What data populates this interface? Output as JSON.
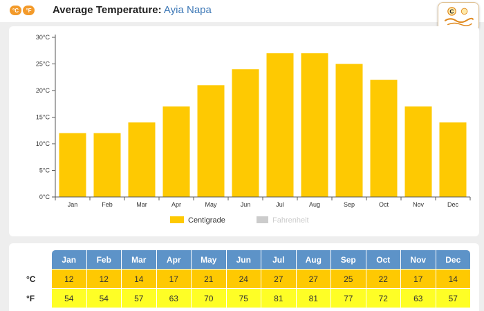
{
  "header": {
    "unit_buttons": [
      {
        "label": "°C",
        "icon": "celsius-toggle-icon"
      },
      {
        "label": "°F",
        "icon": "fahrenheit-toggle-icon"
      }
    ],
    "title_label": "Average Temperature:",
    "place": "Ayia Napa"
  },
  "colors": {
    "centigrade": "#fec902",
    "fahrenheit": "#cccccc",
    "header_blue": "#5d93c8",
    "fahrenheit_row": "#fefe26",
    "accent": "#f39a2a"
  },
  "chart_data": {
    "type": "bar",
    "categories": [
      "Jan",
      "Feb",
      "Mar",
      "Apr",
      "May",
      "Jun",
      "Jul",
      "Aug",
      "Sep",
      "Oct",
      "Nov",
      "Dec"
    ],
    "series": [
      {
        "name": "Centigrade",
        "values": [
          12,
          12,
          14,
          17,
          21,
          24,
          27,
          27,
          25,
          22,
          17,
          14
        ],
        "visible": true
      },
      {
        "name": "Fahrenheit",
        "values": [
          54,
          54,
          57,
          63,
          70,
          75,
          81,
          81,
          77,
          72,
          63,
          57
        ],
        "visible": false
      }
    ],
    "yticks": [
      "0°C",
      "5°C",
      "10°C",
      "15°C",
      "20°C",
      "25°C",
      "30°C"
    ],
    "ylim": [
      0,
      30
    ],
    "ystep": 5,
    "legend_position": "bottom",
    "grid": false
  },
  "table": {
    "months": [
      "Jan",
      "Feb",
      "Mar",
      "Apr",
      "May",
      "Jun",
      "Jul",
      "Aug",
      "Sep",
      "Oct",
      "Nov",
      "Dec"
    ],
    "celsius_label": "°C",
    "celsius": [
      "12",
      "12",
      "14",
      "17",
      "21",
      "24",
      "27",
      "27",
      "25",
      "22",
      "17",
      "14"
    ],
    "fahrenheit_label": "°F",
    "fahrenheit": [
      "54",
      "54",
      "57",
      "63",
      "70",
      "75",
      "81",
      "81",
      "77",
      "72",
      "63",
      "57"
    ]
  }
}
